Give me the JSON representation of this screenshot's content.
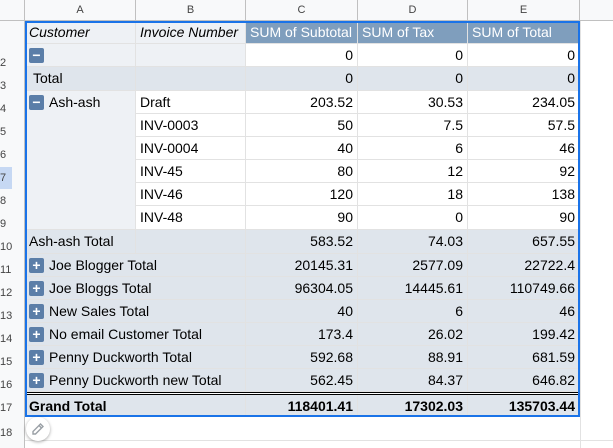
{
  "columns": [
    "A",
    "B",
    "C",
    "D",
    "E"
  ],
  "row_numbers": [
    "2",
    "3",
    "4",
    "5",
    "6",
    "7",
    "8",
    "9",
    "10",
    "11",
    "12",
    "13",
    "14",
    "15",
    "16",
    "17",
    "18"
  ],
  "header": {
    "customer": "Customer",
    "invoice": "Invoice Number",
    "subtotal": "SUM of Subtotal",
    "tax": "SUM of Tax",
    "total": "SUM of Total"
  },
  "blank_row": {
    "subtotal": "0",
    "tax": "0",
    "total": "0"
  },
  "total_row": {
    "label": "Total",
    "subtotal": "0",
    "tax": "0",
    "total": "0"
  },
  "ash_group": {
    "label": "Ash-ash",
    "rows": [
      {
        "invoice": "Draft",
        "subtotal": "203.52",
        "tax": "30.53",
        "total": "234.05"
      },
      {
        "invoice": "INV-0003",
        "subtotal": "50",
        "tax": "7.5",
        "total": "57.5"
      },
      {
        "invoice": "INV-0004",
        "subtotal": "40",
        "tax": "6",
        "total": "46"
      },
      {
        "invoice": "INV-45",
        "subtotal": "80",
        "tax": "12",
        "total": "92"
      },
      {
        "invoice": "INV-46",
        "subtotal": "120",
        "tax": "18",
        "total": "138"
      },
      {
        "invoice": "INV-48",
        "subtotal": "90",
        "tax": "0",
        "total": "90"
      }
    ],
    "total": {
      "label": "Ash-ash Total",
      "subtotal": "583.52",
      "tax": "74.03",
      "total": "657.55"
    }
  },
  "collapsed_groups": [
    {
      "label": "Joe Blogger Total",
      "subtotal": "20145.31",
      "tax": "2577.09",
      "total": "22722.4"
    },
    {
      "label": "Joe Bloggs Total",
      "subtotal": "96304.05",
      "tax": "14445.61",
      "total": "110749.66"
    },
    {
      "label": "New Sales Total",
      "subtotal": "40",
      "tax": "6",
      "total": "46"
    },
    {
      "label": "No email Customer Total",
      "subtotal": "173.4",
      "tax": "26.02",
      "total": "199.42"
    },
    {
      "label": "Penny Duckworth Total",
      "subtotal": "592.68",
      "tax": "88.91",
      "total": "681.59"
    },
    {
      "label": "Penny Duckworth new Total",
      "subtotal": "562.45",
      "tax": "84.37",
      "total": "646.82"
    }
  ],
  "grand_total": {
    "label": "Grand Total",
    "subtotal": "118401.41",
    "tax": "17302.03",
    "total": "135703.44"
  },
  "icons": {
    "expand": "+",
    "collapse": "−"
  },
  "colors": {
    "header_blue": "#7f9ebd",
    "row_shade": "#dfe5ec",
    "button_blue": "#5b7ea8",
    "selection_border": "#1a73e8"
  }
}
